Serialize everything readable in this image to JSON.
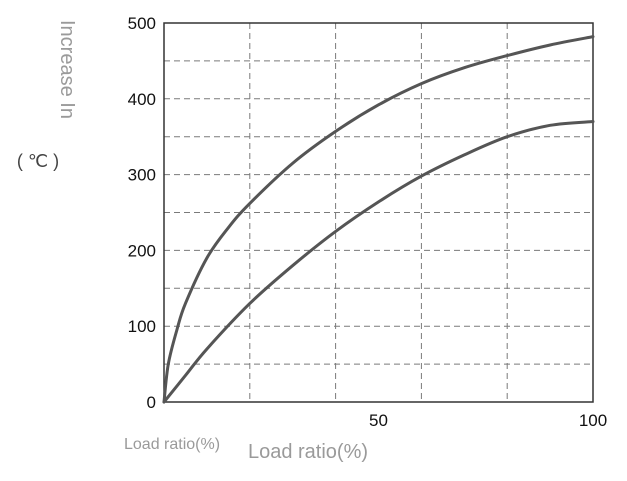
{
  "chart_data": {
    "type": "line",
    "ylabel": "Increase In",
    "yunit": "( ℃ )",
    "xlabel": "Load ratio(%)",
    "xlabel_secondary": "Load ratio(%)",
    "xlim": [
      0,
      100
    ],
    "ylim": [
      0,
      500
    ],
    "x_ticks": [
      50,
      100
    ],
    "y_ticks": [
      0,
      100,
      200,
      300,
      400,
      500
    ],
    "grid": true,
    "series": [
      {
        "x": [
          0,
          1,
          3,
          5,
          10,
          15,
          20,
          30,
          40,
          50,
          60,
          70,
          80,
          90,
          100
        ],
        "values": [
          0,
          50,
          95,
          130,
          190,
          230,
          262,
          315,
          357,
          392,
          420,
          441,
          457,
          471,
          482
        ]
      },
      {
        "x": [
          0,
          5,
          10,
          20,
          30,
          40,
          50,
          60,
          70,
          80,
          90,
          100
        ],
        "values": [
          0,
          35,
          70,
          130,
          180,
          225,
          264,
          298,
          326,
          350,
          365,
          370
        ]
      }
    ],
    "colors": {
      "line": "#555555",
      "grid": "#7a7a7a",
      "axis": "#333333"
    }
  }
}
